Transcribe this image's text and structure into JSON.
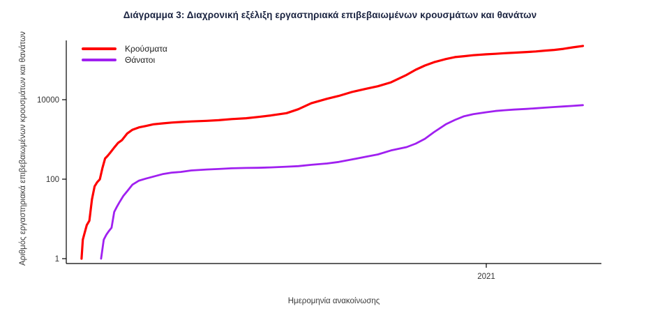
{
  "colors": {
    "cases": "#FF0000",
    "deaths": "#A020F0",
    "title_text": "#1A2340",
    "axis": "#000000",
    "tick_text": "#333333"
  },
  "chart_data": {
    "type": "line",
    "title": "Διάγραμμα 3: Διαχρονική εξέλιξη εργαστηριακά επιβεβαιωμένων κρουσμάτων και θανάτων",
    "xlabel": "Ημερομηνία ανακοίνωσης",
    "ylabel": "Αριθμός εργαστηριακά επιβεβαιωμένων κρουσμάτων και θανάτων",
    "y_scale": "log10",
    "grid": false,
    "legend_position": "top-left",
    "y_ticks": [
      {
        "value": 1,
        "label": "1"
      },
      {
        "value": 100,
        "label": "100"
      },
      {
        "value": 10000,
        "label": "10000"
      }
    ],
    "x_ticks": [
      {
        "date": "2021-01-01",
        "label": "2021"
      }
    ],
    "legend": [
      {
        "name": "Κρούσματα",
        "color": "#FF0000"
      },
      {
        "name": "Θάνατοι",
        "color": "#A020F0"
      }
    ],
    "series": [
      {
        "id": "cases-line",
        "name": "Κρούσματα",
        "color": "#FF0000",
        "width": 3.2,
        "points": [
          [
            "2020-02-26",
            1
          ],
          [
            "2020-02-27",
            3
          ],
          [
            "2020-02-28",
            4
          ],
          [
            "2020-03-01",
            7
          ],
          [
            "2020-03-03",
            9
          ],
          [
            "2020-03-05",
            31
          ],
          [
            "2020-03-07",
            66
          ],
          [
            "2020-03-09",
            84
          ],
          [
            "2020-03-11",
            99
          ],
          [
            "2020-03-13",
            190
          ],
          [
            "2020-03-15",
            331
          ],
          [
            "2020-03-17",
            387
          ],
          [
            "2020-03-19",
            464
          ],
          [
            "2020-03-22",
            624
          ],
          [
            "2020-03-25",
            821
          ],
          [
            "2020-03-28",
            966
          ],
          [
            "2020-04-01",
            1415
          ],
          [
            "2020-04-05",
            1755
          ],
          [
            "2020-04-10",
            2011
          ],
          [
            "2020-04-15",
            2170
          ],
          [
            "2020-04-21",
            2401
          ],
          [
            "2020-04-28",
            2534
          ],
          [
            "2020-05-05",
            2663
          ],
          [
            "2020-05-12",
            2744
          ],
          [
            "2020-05-20",
            2840
          ],
          [
            "2020-06-01",
            2937
          ],
          [
            "2020-06-10",
            3049
          ],
          [
            "2020-06-20",
            3256
          ],
          [
            "2020-07-01",
            3409
          ],
          [
            "2020-07-10",
            3672
          ],
          [
            "2020-07-20",
            4012
          ],
          [
            "2020-08-01",
            4587
          ],
          [
            "2020-08-10",
            5749
          ],
          [
            "2020-08-20",
            8138
          ],
          [
            "2020-09-01",
            10524
          ],
          [
            "2020-09-10",
            12452
          ],
          [
            "2020-09-20",
            15595
          ],
          [
            "2020-10-01",
            18886
          ],
          [
            "2020-10-10",
            21772
          ],
          [
            "2020-10-20",
            27334
          ],
          [
            "2020-11-01",
            42080
          ],
          [
            "2020-11-08",
            56698
          ],
          [
            "2020-11-15",
            72510
          ],
          [
            "2020-11-22",
            87812
          ],
          [
            "2020-12-01",
            105271
          ],
          [
            "2020-12-08",
            118045
          ],
          [
            "2020-12-15",
            124534
          ],
          [
            "2020-12-22",
            131856
          ],
          [
            "2021-01-01",
            138850
          ],
          [
            "2021-01-08",
            142777
          ],
          [
            "2021-01-15",
            147860
          ],
          [
            "2021-01-22",
            151980
          ],
          [
            "2021-02-01",
            158716
          ],
          [
            "2021-02-08",
            163789
          ],
          [
            "2021-02-15",
            171542
          ],
          [
            "2021-02-22",
            178963
          ],
          [
            "2021-03-01",
            190235
          ],
          [
            "2021-03-08",
            206687
          ],
          [
            "2021-03-16",
            224927
          ]
        ]
      },
      {
        "id": "deaths-line",
        "name": "Θάνατοι",
        "color": "#A020F0",
        "width": 2.8,
        "points": [
          [
            "2020-03-12",
            1
          ],
          [
            "2020-03-14",
            3
          ],
          [
            "2020-03-16",
            4
          ],
          [
            "2020-03-18",
            5
          ],
          [
            "2020-03-20",
            6
          ],
          [
            "2020-03-22",
            15
          ],
          [
            "2020-03-24",
            20
          ],
          [
            "2020-03-26",
            26
          ],
          [
            "2020-03-29",
            38
          ],
          [
            "2020-04-01",
            50
          ],
          [
            "2020-04-05",
            73
          ],
          [
            "2020-04-10",
            92
          ],
          [
            "2020-04-15",
            103
          ],
          [
            "2020-04-21",
            116
          ],
          [
            "2020-04-28",
            134
          ],
          [
            "2020-05-05",
            146
          ],
          [
            "2020-05-12",
            152
          ],
          [
            "2020-05-20",
            166
          ],
          [
            "2020-06-01",
            175
          ],
          [
            "2020-06-10",
            180
          ],
          [
            "2020-06-20",
            188
          ],
          [
            "2020-07-01",
            192
          ],
          [
            "2020-07-10",
            193
          ],
          [
            "2020-07-20",
            198
          ],
          [
            "2020-08-01",
            206
          ],
          [
            "2020-08-10",
            213
          ],
          [
            "2020-08-20",
            230
          ],
          [
            "2020-09-01",
            248
          ],
          [
            "2020-09-10",
            271
          ],
          [
            "2020-09-20",
            313
          ],
          [
            "2020-10-01",
            369
          ],
          [
            "2020-10-10",
            420
          ],
          [
            "2020-10-20",
            528
          ],
          [
            "2020-11-01",
            642
          ],
          [
            "2020-11-08",
            784
          ],
          [
            "2020-11-15",
            1035
          ],
          [
            "2020-11-22",
            1527
          ],
          [
            "2020-12-01",
            2406
          ],
          [
            "2020-12-08",
            3099
          ],
          [
            "2020-12-15",
            3840
          ],
          [
            "2020-12-22",
            4340
          ],
          [
            "2021-01-01",
            4838
          ],
          [
            "2021-01-08",
            5195
          ],
          [
            "2021-01-15",
            5437
          ],
          [
            "2021-01-22",
            5646
          ],
          [
            "2021-02-01",
            5878
          ],
          [
            "2021-02-08",
            6077
          ],
          [
            "2021-02-15",
            6321
          ],
          [
            "2021-02-22",
            6534
          ],
          [
            "2021-03-01",
            6758
          ],
          [
            "2021-03-08",
            6987
          ],
          [
            "2021-03-16",
            7297
          ]
        ]
      }
    ]
  }
}
